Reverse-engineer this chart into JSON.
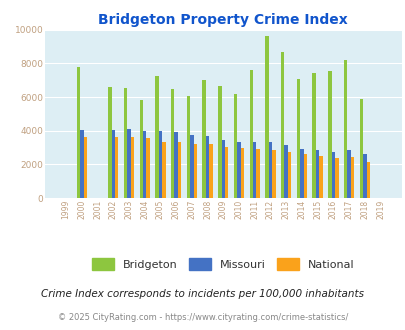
{
  "title": "Bridgeton Property Crime Index",
  "years": [
    1999,
    2000,
    2001,
    2002,
    2003,
    2004,
    2005,
    2006,
    2007,
    2008,
    2009,
    2010,
    2011,
    2012,
    2013,
    2014,
    2015,
    2016,
    2017,
    2018,
    2019
  ],
  "bridgeton": [
    0,
    7800,
    0,
    6600,
    6550,
    5850,
    7250,
    6450,
    6050,
    7000,
    6650,
    6200,
    7600,
    9650,
    8650,
    7100,
    7400,
    7550,
    8200,
    5900,
    0
  ],
  "missouri": [
    0,
    4050,
    0,
    4050,
    4100,
    4000,
    4000,
    3900,
    3750,
    3700,
    3450,
    3350,
    3300,
    3300,
    3150,
    2900,
    2850,
    2750,
    2850,
    2600,
    0
  ],
  "national": [
    0,
    3650,
    0,
    3600,
    3650,
    3550,
    3350,
    3350,
    3200,
    3200,
    3050,
    3000,
    2900,
    2850,
    2750,
    2600,
    2500,
    2400,
    2450,
    2150,
    0
  ],
  "bridgeton_color": "#8dc63f",
  "missouri_color": "#4472c4",
  "national_color": "#faa21b",
  "bg_color": "#ddeef4",
  "ylim": [
    0,
    10000
  ],
  "yticks": [
    0,
    2000,
    4000,
    6000,
    8000,
    10000
  ],
  "footnote1": "Crime Index corresponds to incidents per 100,000 inhabitants",
  "footnote2": "© 2025 CityRating.com - https://www.cityrating.com/crime-statistics/",
  "bar_width": 0.22,
  "tick_color": "#c0a080",
  "ytick_color": "#c0a080",
  "title_color": "#1155cc",
  "footnote1_color": "#222222",
  "footnote2_color": "#888888",
  "legend_text_color": "#333333"
}
